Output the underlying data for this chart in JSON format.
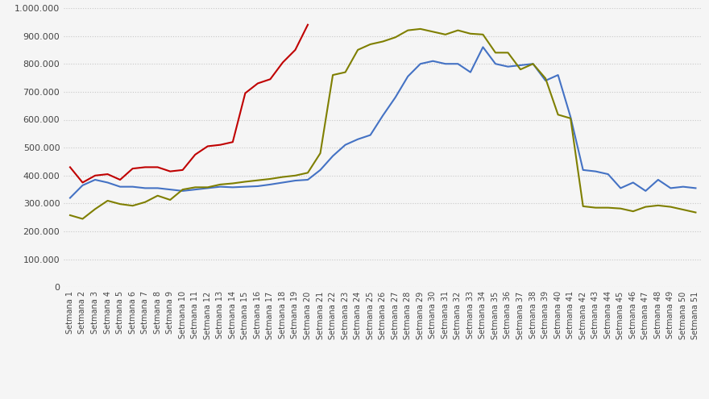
{
  "ylim": [
    0,
    1000000
  ],
  "yticks": [
    0,
    100000,
    200000,
    300000,
    400000,
    500000,
    600000,
    700000,
    800000,
    900000,
    1000000
  ],
  "ytick_labels": [
    "0",
    "100.000",
    "200.000",
    "300.000",
    "400.000",
    "500.000",
    "600.000",
    "700.000",
    "800.000",
    "900.000",
    "1.000.000"
  ],
  "weeks": [
    1,
    2,
    3,
    4,
    5,
    6,
    7,
    8,
    9,
    10,
    11,
    12,
    13,
    14,
    15,
    16,
    17,
    18,
    19,
    20,
    21,
    22,
    23,
    24,
    25,
    26,
    27,
    28,
    29,
    30,
    31,
    32,
    33,
    34,
    35,
    36,
    37,
    38,
    39,
    40,
    41,
    42,
    43,
    44,
    45,
    46,
    47,
    48,
    49,
    50,
    51
  ],
  "blue": [
    320000,
    365000,
    385000,
    375000,
    360000,
    360000,
    355000,
    355000,
    350000,
    345000,
    350000,
    355000,
    360000,
    358000,
    360000,
    362000,
    368000,
    375000,
    382000,
    385000,
    420000,
    470000,
    510000,
    530000,
    545000,
    615000,
    680000,
    755000,
    800000,
    810000,
    800000,
    800000,
    770000,
    860000,
    800000,
    790000,
    795000,
    800000,
    740000,
    760000,
    610000,
    420000,
    415000,
    405000,
    355000,
    375000,
    345000,
    385000,
    355000,
    360000,
    355000
  ],
  "red": [
    430000,
    375000,
    400000,
    405000,
    385000,
    425000,
    430000,
    430000,
    415000,
    420000,
    475000,
    505000,
    510000,
    520000,
    695000,
    730000,
    745000,
    805000,
    850000,
    940000,
    null,
    null,
    null,
    null,
    null,
    null,
    null,
    null,
    null,
    null,
    null,
    null,
    null,
    null,
    null,
    null,
    null,
    null,
    null,
    null,
    null,
    null,
    null,
    null,
    null,
    null,
    null,
    null,
    null,
    null,
    null
  ],
  "green": [
    258000,
    245000,
    280000,
    310000,
    298000,
    292000,
    305000,
    328000,
    313000,
    350000,
    358000,
    358000,
    368000,
    372000,
    378000,
    383000,
    388000,
    395000,
    400000,
    410000,
    480000,
    760000,
    770000,
    850000,
    870000,
    880000,
    895000,
    920000,
    925000,
    915000,
    905000,
    920000,
    908000,
    905000,
    840000,
    840000,
    780000,
    800000,
    748000,
    618000,
    605000,
    290000,
    285000,
    285000,
    282000,
    272000,
    288000,
    293000,
    288000,
    278000,
    268000
  ],
  "blue_color": "#4472c4",
  "red_color": "#c00000",
  "green_color": "#7f7f00",
  "background_color": "#f5f5f5",
  "grid_color": "#c8c8c8",
  "line_width": 1.5,
  "figwidth": 8.8,
  "figheight": 4.95,
  "dpi": 100
}
